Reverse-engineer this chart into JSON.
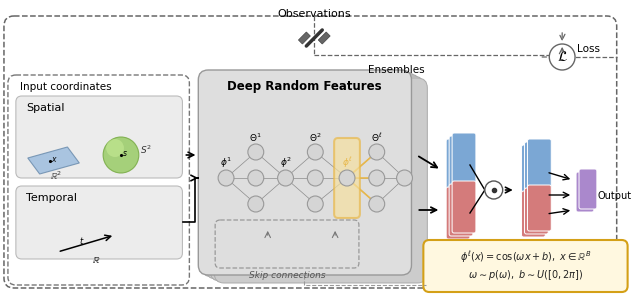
{
  "bg_color": "#ffffff",
  "obs_label": "Observations",
  "ensembles_label": "Ensembles",
  "loss_label": "Loss",
  "output_label": "Output",
  "input_coord_label": "Input coordinates",
  "spatial_label": "Spatial",
  "temporal_label": "Temporal",
  "drf_label": "Deep Random Features",
  "skip_label": "Skip connections",
  "formula1": "$\\phi^\\ell(x) = \\cos(\\omega x + b),\\ x \\in \\mathbb{R}^B$",
  "formula2": "$\\omega \\sim p(\\omega),\\ b \\sim U([0, 2\\pi])$",
  "blue_color": "#7ba7d4",
  "red_color": "#d47b7b",
  "purple_color": "#aa88cc",
  "green_color": "#99cc66",
  "node_color": "#cccccc",
  "node_edge": "#999999",
  "formula_box_bg": "#fff8e0",
  "formula_box_border": "#d4a017",
  "drf_box_bg": "#dedede",
  "drf_stack_bg": "#cccccc",
  "inner_box_bg": "#ececec",
  "outer_dashed_color": "#666666",
  "highlight_color": "#e8b84b",
  "highlight_fill": "#f5e0a0",
  "conn_color": "#555555",
  "plane_color": "#99bbdd",
  "plane_edge": "#6688aa"
}
